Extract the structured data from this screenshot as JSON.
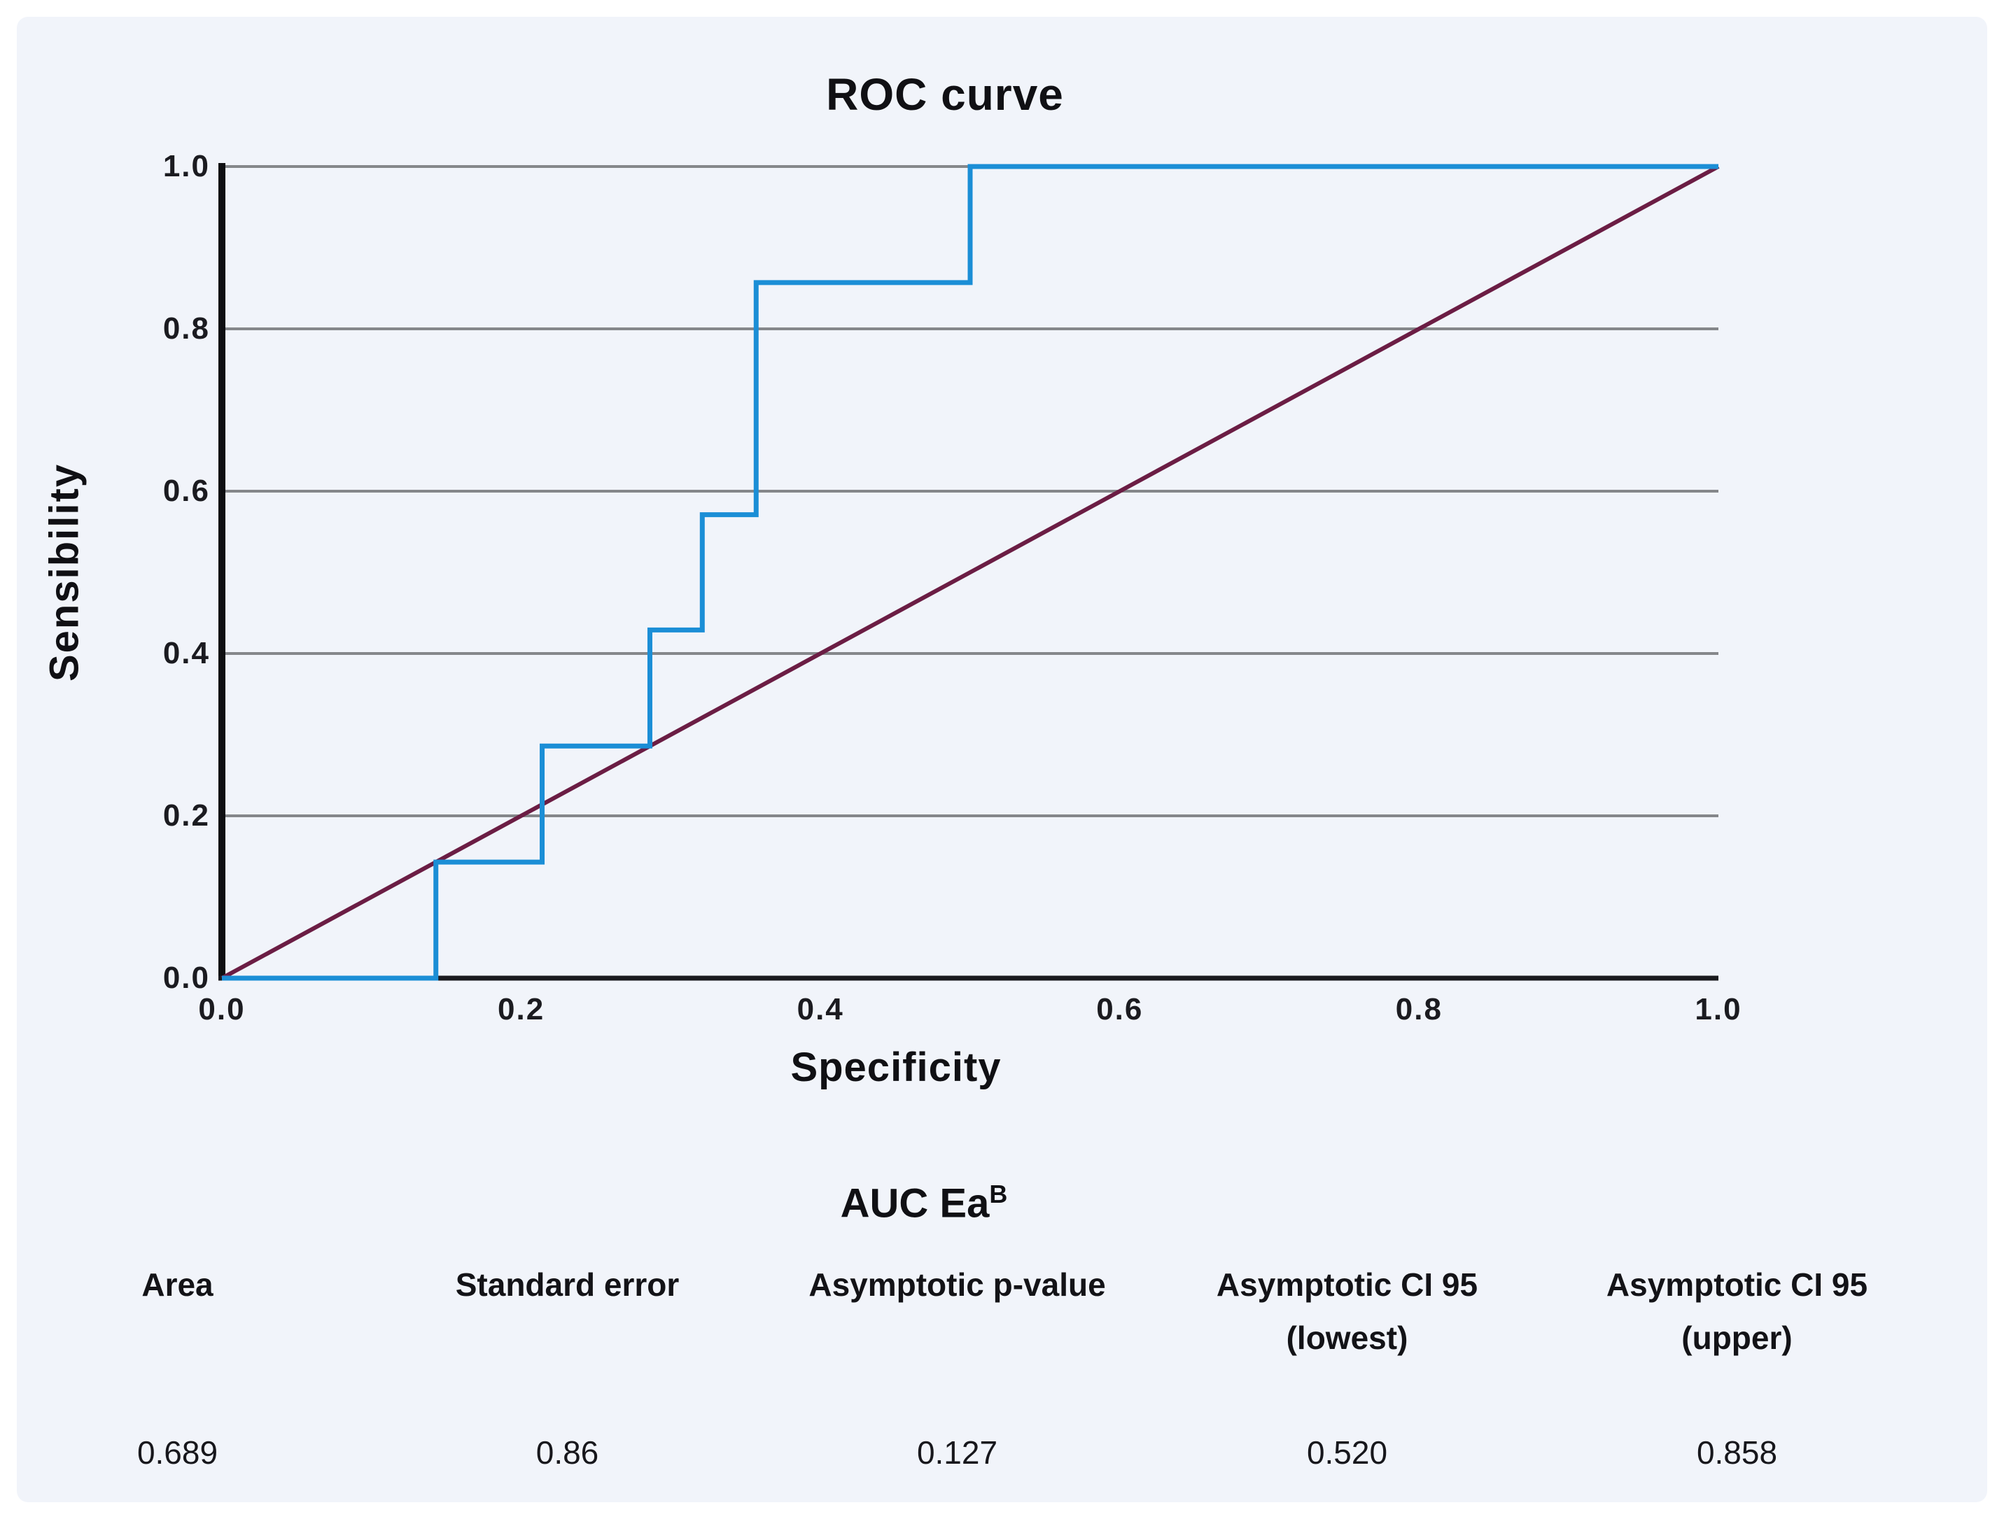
{
  "chart": {
    "title": "ROC curve",
    "xlabel": "Specificity",
    "ylabel": "Sensibility"
  },
  "chart_data": {
    "type": "line",
    "title": "ROC curve",
    "xlabel": "Specificity",
    "ylabel": "Sensibility",
    "xlim": [
      0.0,
      1.0
    ],
    "ylim": [
      0.0,
      1.0
    ],
    "grid": true,
    "legend": "none",
    "xtick_labels": [
      "0.0",
      "0.2",
      "0.4",
      "0.6",
      "0.8",
      "1.0"
    ],
    "ytick_labels": [
      "0.0",
      "0.2",
      "0.4",
      "0.6",
      "0.8",
      "1.0"
    ],
    "series": [
      {
        "name": "ROC step curve",
        "color": "#1b8ed6",
        "width": 7,
        "points": [
          [
            0.0,
            0.0
          ],
          [
            0.143,
            0.0
          ],
          [
            0.143,
            0.143
          ],
          [
            0.214,
            0.143
          ],
          [
            0.214,
            0.286
          ],
          [
            0.286,
            0.286
          ],
          [
            0.286,
            0.429
          ],
          [
            0.321,
            0.429
          ],
          [
            0.321,
            0.571
          ],
          [
            0.357,
            0.571
          ],
          [
            0.357,
            0.857
          ],
          [
            0.5,
            0.857
          ],
          [
            0.5,
            1.0
          ],
          [
            1.0,
            1.0
          ]
        ]
      },
      {
        "name": "reference-diagonal",
        "color": "#6b1d44",
        "width": 6,
        "points": [
          [
            0.0,
            0.0
          ],
          [
            1.0,
            1.0
          ]
        ]
      }
    ],
    "gridline_color": "#85878a",
    "axis_color": "#0f0f12",
    "plot_background": "#f1f4fa"
  },
  "auc_table": {
    "title_text": "AUC Ea",
    "title_superscript": "B",
    "columns": [
      {
        "header": "Area",
        "value": "0.689"
      },
      {
        "header": "Standard error",
        "value": "0.86"
      },
      {
        "header": "Asymptotic p-value",
        "value": "0.127"
      },
      {
        "header": "Asymptotic CI 95 (lowest)",
        "value": "0.520"
      },
      {
        "header": "Asymptotic CI 95 (upper)",
        "value": "0.858"
      }
    ]
  }
}
